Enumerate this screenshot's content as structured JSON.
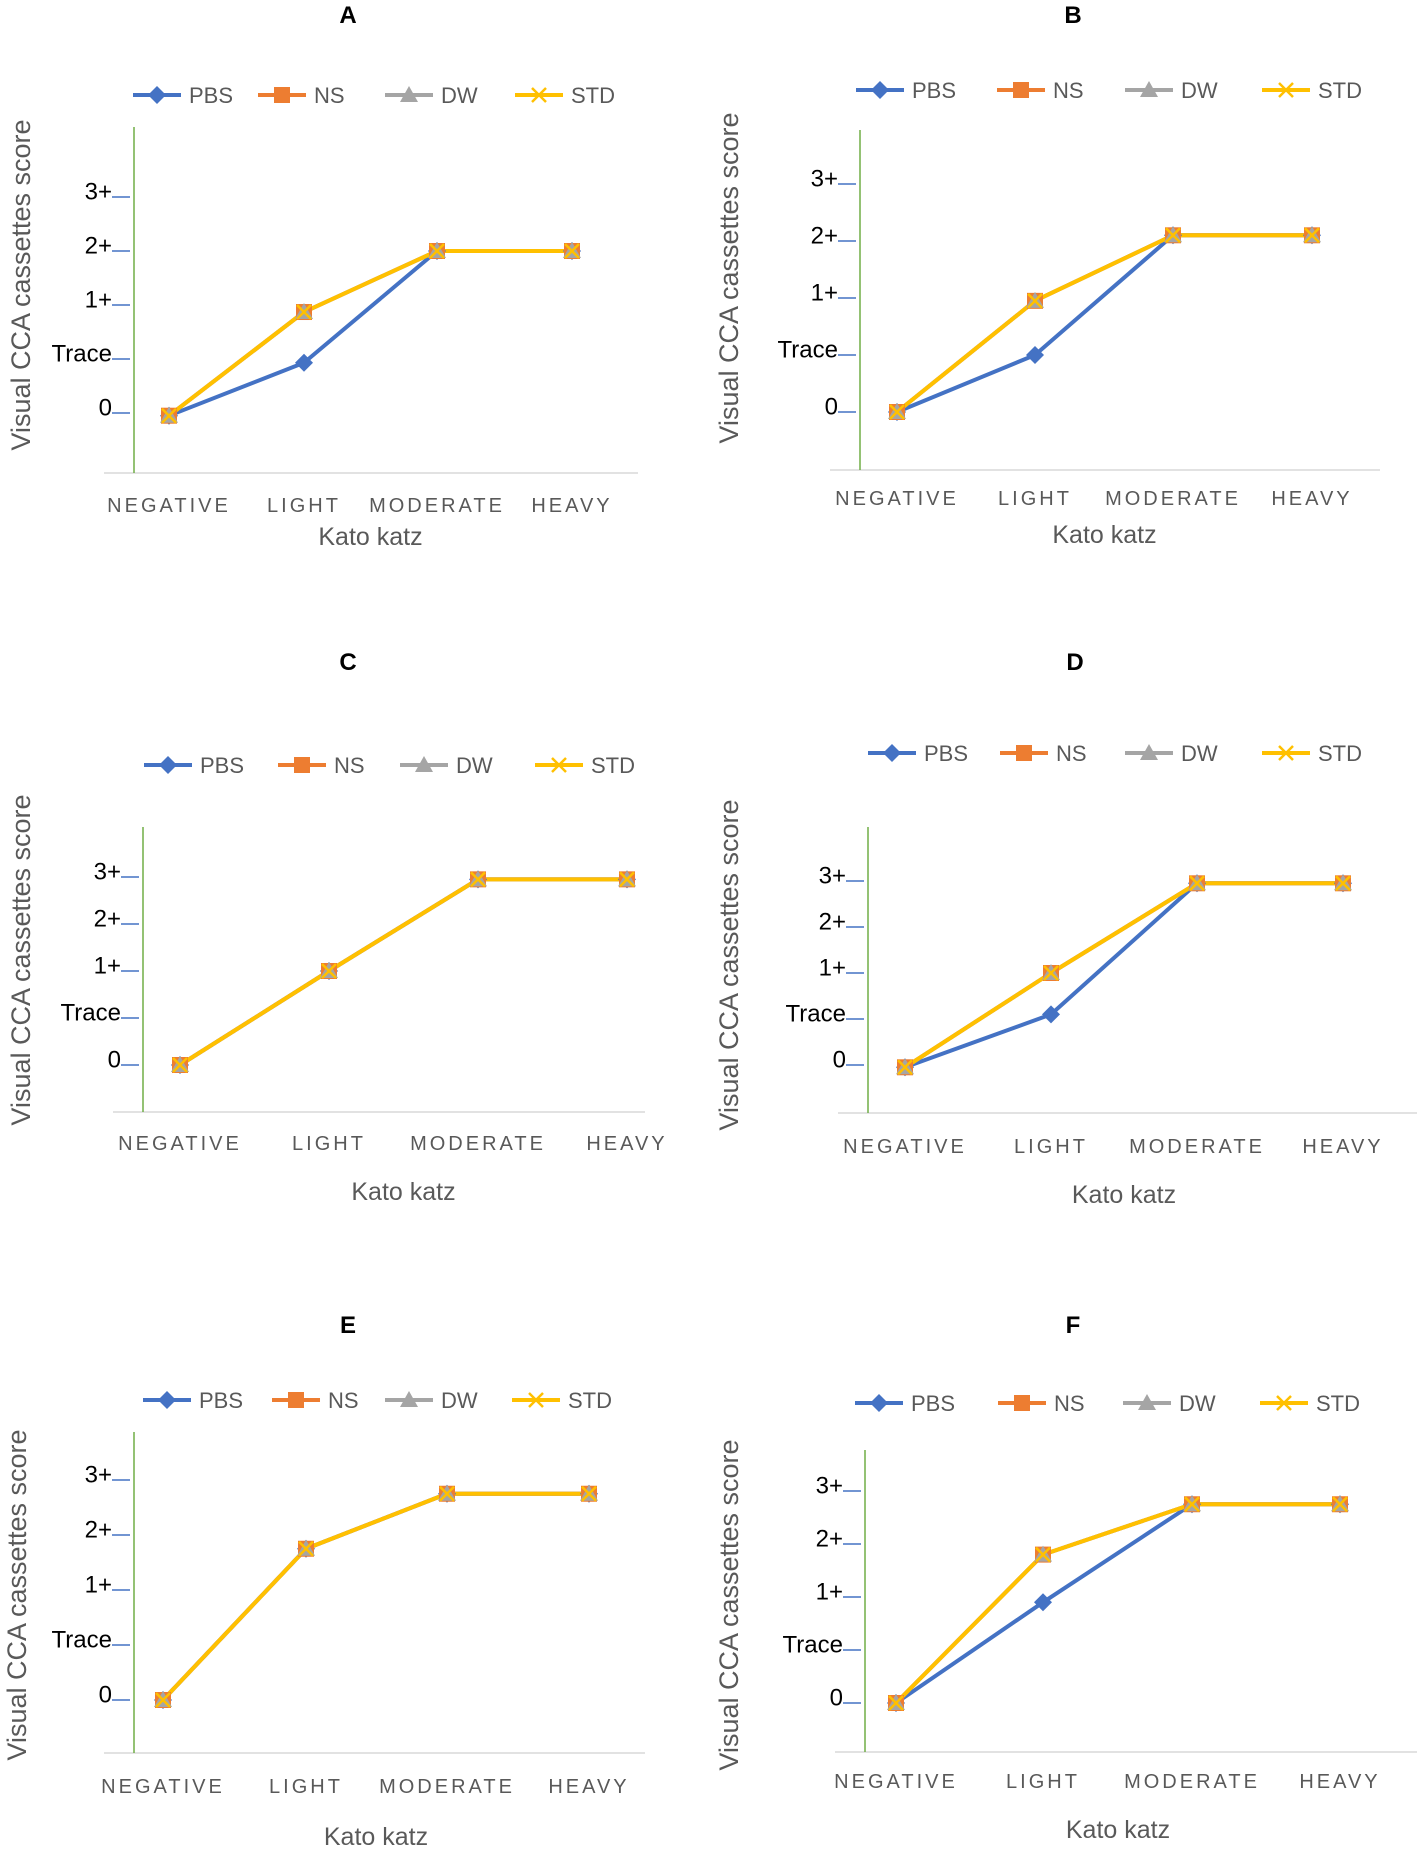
{
  "figure": {
    "colors": {
      "PBS": "#4472C4",
      "NS": "#ED7D31",
      "DW": "#A5A5A5",
      "STD": "#FFC000",
      "axis": "#70AD47",
      "tick": "#4472C4",
      "baseline": "#d9d9d9"
    }
  },
  "chart_data": [
    {
      "panel": "A",
      "type": "line",
      "categories": [
        "NEGATIVE",
        "LIGHT",
        "MODERATE",
        "HEAVY"
      ],
      "ytick_labels": [
        "0",
        "Trace",
        "1+",
        "2+",
        "3+"
      ],
      "ylim": [
        -1,
        5
      ],
      "xlabel": "Kato katz",
      "ylabel": "Visual CCA cassettes score",
      "series": [
        {
          "name": "PBS",
          "marker": "diamond",
          "values": [
            -0.05,
            0.93,
            3.0,
            3.0
          ]
        },
        {
          "name": "NS",
          "marker": "square",
          "values": [
            -0.05,
            1.87,
            3.0,
            3.0
          ]
        },
        {
          "name": "DW",
          "marker": "triangle",
          "values": [
            -0.05,
            1.87,
            3.0,
            3.0
          ]
        },
        {
          "name": "STD",
          "marker": "x",
          "values": [
            -0.05,
            1.87,
            3.0,
            3.0
          ]
        }
      ]
    },
    {
      "panel": "B",
      "type": "line",
      "categories": [
        "NEGATIVE",
        "LIGHT",
        "MODERATE",
        "HEAVY"
      ],
      "ytick_labels": [
        "0",
        "Trace",
        "1+",
        "2+",
        "3+"
      ],
      "ylim": [
        -1,
        5
      ],
      "xlabel": "Kato katz",
      "ylabel": "Visual CCA cassettes score",
      "series": [
        {
          "name": "PBS",
          "marker": "diamond",
          "values": [
            0,
            1.0,
            3.1,
            3.1
          ]
        },
        {
          "name": "NS",
          "marker": "square",
          "values": [
            0,
            1.95,
            3.1,
            3.1
          ]
        },
        {
          "name": "DW",
          "marker": "triangle",
          "values": [
            0,
            1.95,
            3.1,
            3.1
          ]
        },
        {
          "name": "STD",
          "marker": "x",
          "values": [
            0,
            1.95,
            3.1,
            3.1
          ]
        }
      ]
    },
    {
      "panel": "C",
      "type": "line",
      "categories": [
        "NEGATIVE",
        "LIGHT",
        "MODERATE",
        "HEAVY"
      ],
      "ytick_labels": [
        "0",
        "Trace",
        "1+",
        "2+",
        "3+"
      ],
      "ylim": [
        -1,
        5
      ],
      "xlabel": "Kato katz",
      "ylabel": "Visual CCA cassettes score",
      "series": [
        {
          "name": "PBS",
          "marker": "diamond",
          "values": [
            0,
            2.0,
            3.95,
            3.95
          ]
        },
        {
          "name": "NS",
          "marker": "square",
          "values": [
            0,
            2.0,
            3.95,
            3.95
          ]
        },
        {
          "name": "DW",
          "marker": "triangle",
          "values": [
            0,
            2.0,
            3.95,
            3.95
          ]
        },
        {
          "name": "STD",
          "marker": "x",
          "values": [
            0,
            2.0,
            3.95,
            3.95
          ]
        }
      ]
    },
    {
      "panel": "D",
      "type": "line",
      "categories": [
        "NEGATIVE",
        "LIGHT",
        "MODERATE",
        "HEAVY"
      ],
      "ytick_labels": [
        "0",
        "Trace",
        "1+",
        "2+",
        "3+"
      ],
      "ylim": [
        -1,
        5
      ],
      "xlabel": "Kato katz",
      "ylabel": "Visual CCA cassettes score",
      "series": [
        {
          "name": "PBS",
          "marker": "diamond",
          "values": [
            -0.05,
            1.1,
            3.95,
            3.95
          ]
        },
        {
          "name": "NS",
          "marker": "square",
          "values": [
            -0.05,
            2.0,
            3.95,
            3.95
          ]
        },
        {
          "name": "DW",
          "marker": "triangle",
          "values": [
            -0.05,
            2.0,
            3.95,
            3.95
          ]
        },
        {
          "name": "STD",
          "marker": "x",
          "values": [
            -0.05,
            2.0,
            3.95,
            3.95
          ]
        }
      ]
    },
    {
      "panel": "E",
      "type": "line",
      "categories": [
        "NEGATIVE",
        "LIGHT",
        "MODERATE",
        "HEAVY"
      ],
      "ytick_labels": [
        "0",
        "Trace",
        "1+",
        "2+",
        "3+"
      ],
      "ylim": [
        -1,
        5
      ],
      "xlabel": "Kato katz",
      "ylabel": "Visual CCA cassettes score",
      "series": [
        {
          "name": "PBS",
          "marker": "diamond",
          "values": [
            0,
            2.75,
            3.75,
            3.75
          ]
        },
        {
          "name": "NS",
          "marker": "square",
          "values": [
            0,
            2.75,
            3.75,
            3.75
          ]
        },
        {
          "name": "DW",
          "marker": "triangle",
          "values": [
            0,
            2.75,
            3.75,
            3.75
          ]
        },
        {
          "name": "STD",
          "marker": "x",
          "values": [
            0,
            2.75,
            3.75,
            3.75
          ]
        }
      ]
    },
    {
      "panel": "F",
      "type": "line",
      "categories": [
        "NEGATIVE",
        "LIGHT",
        "MODERATE",
        "HEAVY"
      ],
      "ytick_labels": [
        "0",
        "Trace",
        "1+",
        "2+",
        "3+"
      ],
      "ylim": [
        -1,
        5
      ],
      "xlabel": "Kato katz",
      "ylabel": "Visual CCA cassettes score",
      "series": [
        {
          "name": "PBS",
          "marker": "diamond",
          "values": [
            0,
            1.9,
            3.75,
            3.75
          ]
        },
        {
          "name": "NS",
          "marker": "square",
          "values": [
            0,
            2.8,
            3.75,
            3.75
          ]
        },
        {
          "name": "DW",
          "marker": "triangle",
          "values": [
            0,
            2.8,
            3.75,
            3.75
          ]
        },
        {
          "name": "STD",
          "marker": "x",
          "values": [
            0,
            2.8,
            3.75,
            3.75
          ]
        }
      ]
    }
  ]
}
